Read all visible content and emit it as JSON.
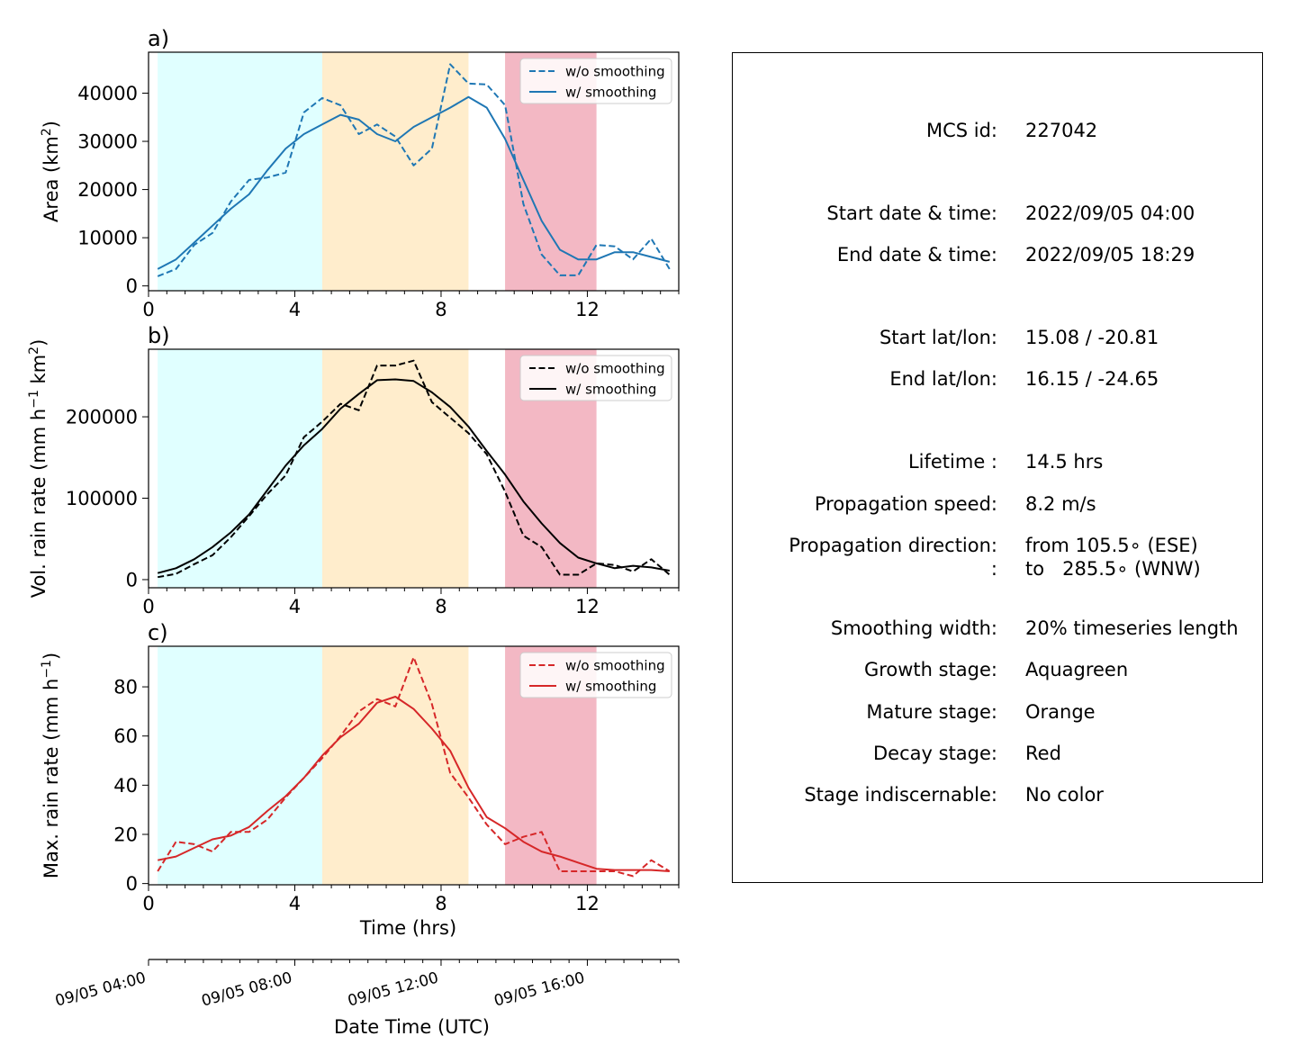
{
  "chart_data": [
    {
      "type": "line",
      "panel_label": "a)",
      "ylabel": "Area  (km²)",
      "xlabel": "",
      "xlim": [
        0,
        14.5
      ],
      "ylim": [
        -1000,
        48500
      ],
      "xticks": [
        0,
        4,
        8,
        12
      ],
      "yticks": [
        0,
        10000,
        20000,
        30000,
        40000
      ],
      "stage_bands": [
        {
          "stage": "Growth",
          "color": "#e0ffff",
          "x": [
            0.25,
            4.75
          ]
        },
        {
          "stage": "Mature",
          "color": "#ffedcc",
          "x": [
            4.75,
            8.75
          ]
        },
        {
          "stage": "Decay",
          "color": "#f3b8c4",
          "x": [
            9.75,
            12.25
          ]
        }
      ],
      "legend": {
        "position": "top-right"
      },
      "x": [
        0.25,
        0.75,
        1.25,
        1.75,
        2.25,
        2.75,
        3.25,
        3.75,
        4.25,
        4.75,
        5.25,
        5.75,
        6.25,
        6.75,
        7.25,
        7.75,
        8.25,
        8.75,
        9.25,
        9.75,
        10.25,
        10.75,
        11.25,
        11.75,
        12.25,
        12.75,
        13.25,
        13.75,
        14.25
      ],
      "series": [
        {
          "name": "w/o smoothing",
          "style": "dashed",
          "color": "#1f77b4",
          "values": [
            2000,
            3500,
            8500,
            11000,
            17500,
            22000,
            22500,
            23500,
            36000,
            39000,
            37500,
            31500,
            33500,
            31000,
            25000,
            28500,
            46000,
            42000,
            41800,
            37500,
            17000,
            6500,
            2200,
            2200,
            8500,
            8200,
            5500,
            9800,
            3500
          ]
        },
        {
          "name": "w/ smoothing",
          "style": "solid",
          "color": "#1f77b4",
          "values": [
            3500,
            5500,
            9000,
            12500,
            16000,
            19000,
            24000,
            28500,
            31500,
            33500,
            35500,
            34500,
            31500,
            30000,
            33000,
            35000,
            37000,
            39200,
            37000,
            30500,
            22000,
            13500,
            7500,
            5500,
            5500,
            7000,
            7000,
            6000,
            5000
          ]
        }
      ]
    },
    {
      "type": "line",
      "panel_label": "b)",
      "ylabel": "Vol. rain rate (mm h⁻¹ km²)",
      "xlabel": "",
      "xlim": [
        0,
        14.5
      ],
      "ylim": [
        -10000,
        283000
      ],
      "xticks": [
        0,
        4,
        8,
        12
      ],
      "yticks": [
        0,
        100000,
        200000
      ],
      "stage_bands": [
        {
          "stage": "Growth",
          "color": "#e0ffff",
          "x": [
            0.25,
            4.75
          ]
        },
        {
          "stage": "Mature",
          "color": "#ffedcc",
          "x": [
            4.75,
            8.75
          ]
        },
        {
          "stage": "Decay",
          "color": "#f3b8c4",
          "x": [
            9.75,
            12.25
          ]
        }
      ],
      "legend": {
        "position": "top-right"
      },
      "x": [
        0.25,
        0.75,
        1.25,
        1.75,
        2.25,
        2.75,
        3.25,
        3.75,
        4.25,
        4.75,
        5.25,
        5.75,
        6.25,
        6.75,
        7.25,
        7.75,
        8.25,
        8.75,
        9.25,
        9.75,
        10.25,
        10.75,
        11.25,
        11.75,
        12.25,
        12.75,
        13.25,
        13.75,
        14.25
      ],
      "series": [
        {
          "name": "w/o smoothing",
          "style": "dashed",
          "color": "#000000",
          "values": [
            3000,
            7000,
            19000,
            30000,
            52000,
            78000,
            105000,
            128000,
            175000,
            194000,
            216000,
            208000,
            263000,
            263000,
            269000,
            218000,
            199000,
            180000,
            154000,
            108000,
            54000,
            40000,
            6000,
            6000,
            20000,
            18000,
            10000,
            25000,
            6000
          ]
        },
        {
          "name": "w/ smoothing",
          "style": "solid",
          "color": "#000000",
          "values": [
            8000,
            14000,
            25000,
            40000,
            58000,
            80000,
            110000,
            140000,
            165000,
            185000,
            210000,
            228000,
            245000,
            246000,
            244000,
            230000,
            212000,
            188000,
            158000,
            129000,
            96000,
            69000,
            45000,
            27000,
            20000,
            14000,
            17000,
            15000,
            11000
          ]
        }
      ]
    },
    {
      "type": "line",
      "panel_label": "c)",
      "ylabel": "Max. rain rate  (mm h⁻¹)",
      "xlabel": "Time (hrs)",
      "xlim": [
        0,
        14.5
      ],
      "ylim": [
        -0.5,
        96.5
      ],
      "xticks": [
        0,
        4,
        8,
        12
      ],
      "yticks": [
        0,
        20,
        40,
        60,
        80
      ],
      "stage_bands": [
        {
          "stage": "Growth",
          "color": "#e0ffff",
          "x": [
            0.25,
            4.75
          ]
        },
        {
          "stage": "Mature",
          "color": "#ffedcc",
          "x": [
            4.75,
            8.75
          ]
        },
        {
          "stage": "Decay",
          "color": "#f3b8c4",
          "x": [
            9.75,
            12.25
          ]
        }
      ],
      "legend": {
        "position": "top-right"
      },
      "x": [
        0.25,
        0.75,
        1.25,
        1.75,
        2.25,
        2.75,
        3.25,
        3.75,
        4.25,
        4.75,
        5.25,
        5.75,
        6.25,
        6.75,
        7.25,
        7.75,
        8.25,
        8.75,
        9.25,
        9.75,
        10.25,
        10.75,
        11.25,
        11.75,
        12.25,
        12.75,
        13.25,
        13.75,
        14.25
      ],
      "series": [
        {
          "name": "w/o smoothing",
          "style": "dashed",
          "color": "#d62728",
          "values": [
            5,
            17,
            16,
            13,
            21,
            21,
            26,
            35,
            43,
            51,
            60,
            70,
            75,
            72,
            92,
            73,
            45,
            35,
            24,
            16,
            19,
            21,
            5,
            5,
            5,
            5,
            3,
            9.5,
            5
          ]
        },
        {
          "name": "w/ smoothing",
          "style": "solid",
          "color": "#d62728",
          "values": [
            9.5,
            11,
            14.5,
            18,
            19.5,
            23,
            29.5,
            35.5,
            43,
            52,
            59.5,
            65,
            73.5,
            76,
            71,
            63,
            54,
            39,
            27,
            22.5,
            17,
            13,
            11,
            8.5,
            6,
            5.5,
            5.5,
            5.5,
            5
          ]
        }
      ]
    },
    {
      "type": "axis",
      "xlabel": "Date Time (UTC)",
      "xlim": [
        0,
        14.5
      ],
      "major_ticks": [
        0,
        4,
        8,
        12
      ],
      "tick_labels": [
        "09/05 04:00",
        "09/05 08:00",
        "09/05 12:00",
        "09/05 16:00"
      ]
    }
  ],
  "info": {
    "rows": [
      {
        "key": "MCS id:",
        "value": "227042"
      },
      {
        "key": "Start date & time:",
        "value": "2022/09/05 04:00"
      },
      {
        "key": "End date & time:",
        "value": "2022/09/05 18:29"
      },
      {
        "key": "Start lat/lon:",
        "value": "15.08 / -20.81"
      },
      {
        "key": "End lat/lon:",
        "value": "16.15 / -24.65"
      },
      {
        "key": "Lifetime :",
        "value": "14.5 hrs"
      },
      {
        "key": "Propagation speed:",
        "value": "8.2 m/s"
      },
      {
        "key": "Propagation direction:",
        "value": "from 105.5∘ (ESE)"
      },
      {
        "key": ":",
        "value": "to   285.5∘ (WNW)"
      },
      {
        "key": "Smoothing width:",
        "value": "20% timeseries length"
      },
      {
        "key": "Growth stage:",
        "value": "Aquagreen"
      },
      {
        "key": "Mature stage:",
        "value": "Orange"
      },
      {
        "key": "Decay stage:",
        "value": "Red"
      },
      {
        "key": "Stage indiscernable:",
        "value": "No color"
      }
    ]
  }
}
